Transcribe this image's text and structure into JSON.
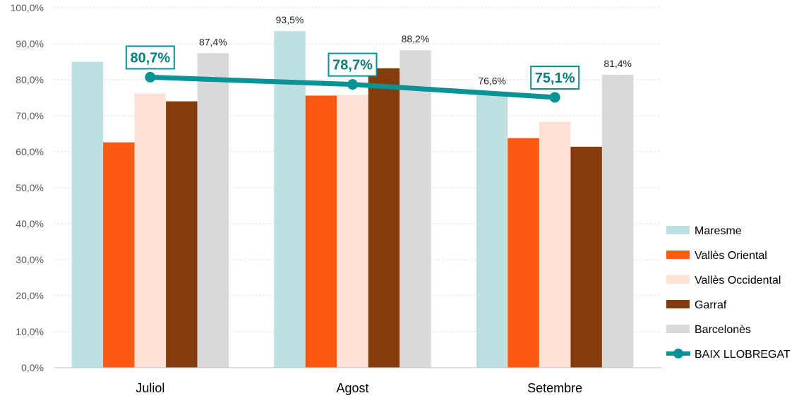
{
  "chart_data": {
    "type": "bar",
    "categories": [
      "Juliol",
      "Agost",
      "Setembre"
    ],
    "series": [
      {
        "name": "Maresme",
        "values": [
          85.0,
          93.5,
          76.6
        ],
        "color": "#bfe0e0",
        "labels": [
          "",
          "93,5%",
          "76,6%"
        ]
      },
      {
        "name": "Vallès Oriental",
        "values": [
          62.6,
          75.6,
          63.8
        ],
        "color": "#ff5a14",
        "labels": [
          "",
          "",
          ""
        ]
      },
      {
        "name": "Vallès Occidental",
        "values": [
          76.2,
          75.8,
          68.3
        ],
        "color": "#fde2d4",
        "labels": [
          "",
          "",
          ""
        ]
      },
      {
        "name": "Garraf",
        "values": [
          74.0,
          83.2,
          61.4
        ],
        "color": "#843c0c",
        "labels": [
          "",
          "",
          ""
        ]
      },
      {
        "name": "Barcelonès",
        "values": [
          87.4,
          88.2,
          81.4
        ],
        "color": "#d9d9d9",
        "labels": [
          "87,4%",
          "88,2%",
          "81,4%"
        ]
      }
    ],
    "line_series": {
      "name": "BAIX LLOBREGAT",
      "values": [
        80.7,
        78.7,
        75.1
      ],
      "labels": [
        "80,7%",
        "78,7%",
        "75,1%"
      ],
      "color": "#0a9396",
      "label_color": "#0a7d7a"
    },
    "ylim": [
      0,
      100
    ],
    "yticks": [
      "0,0%",
      "10,0%",
      "20,0%",
      "30,0%",
      "40,0%",
      "50,0%",
      "60,0%",
      "70,0%",
      "80,0%",
      "90,0%",
      "100,0%"
    ],
    "grid": true,
    "legend_position": "right-bottom"
  }
}
